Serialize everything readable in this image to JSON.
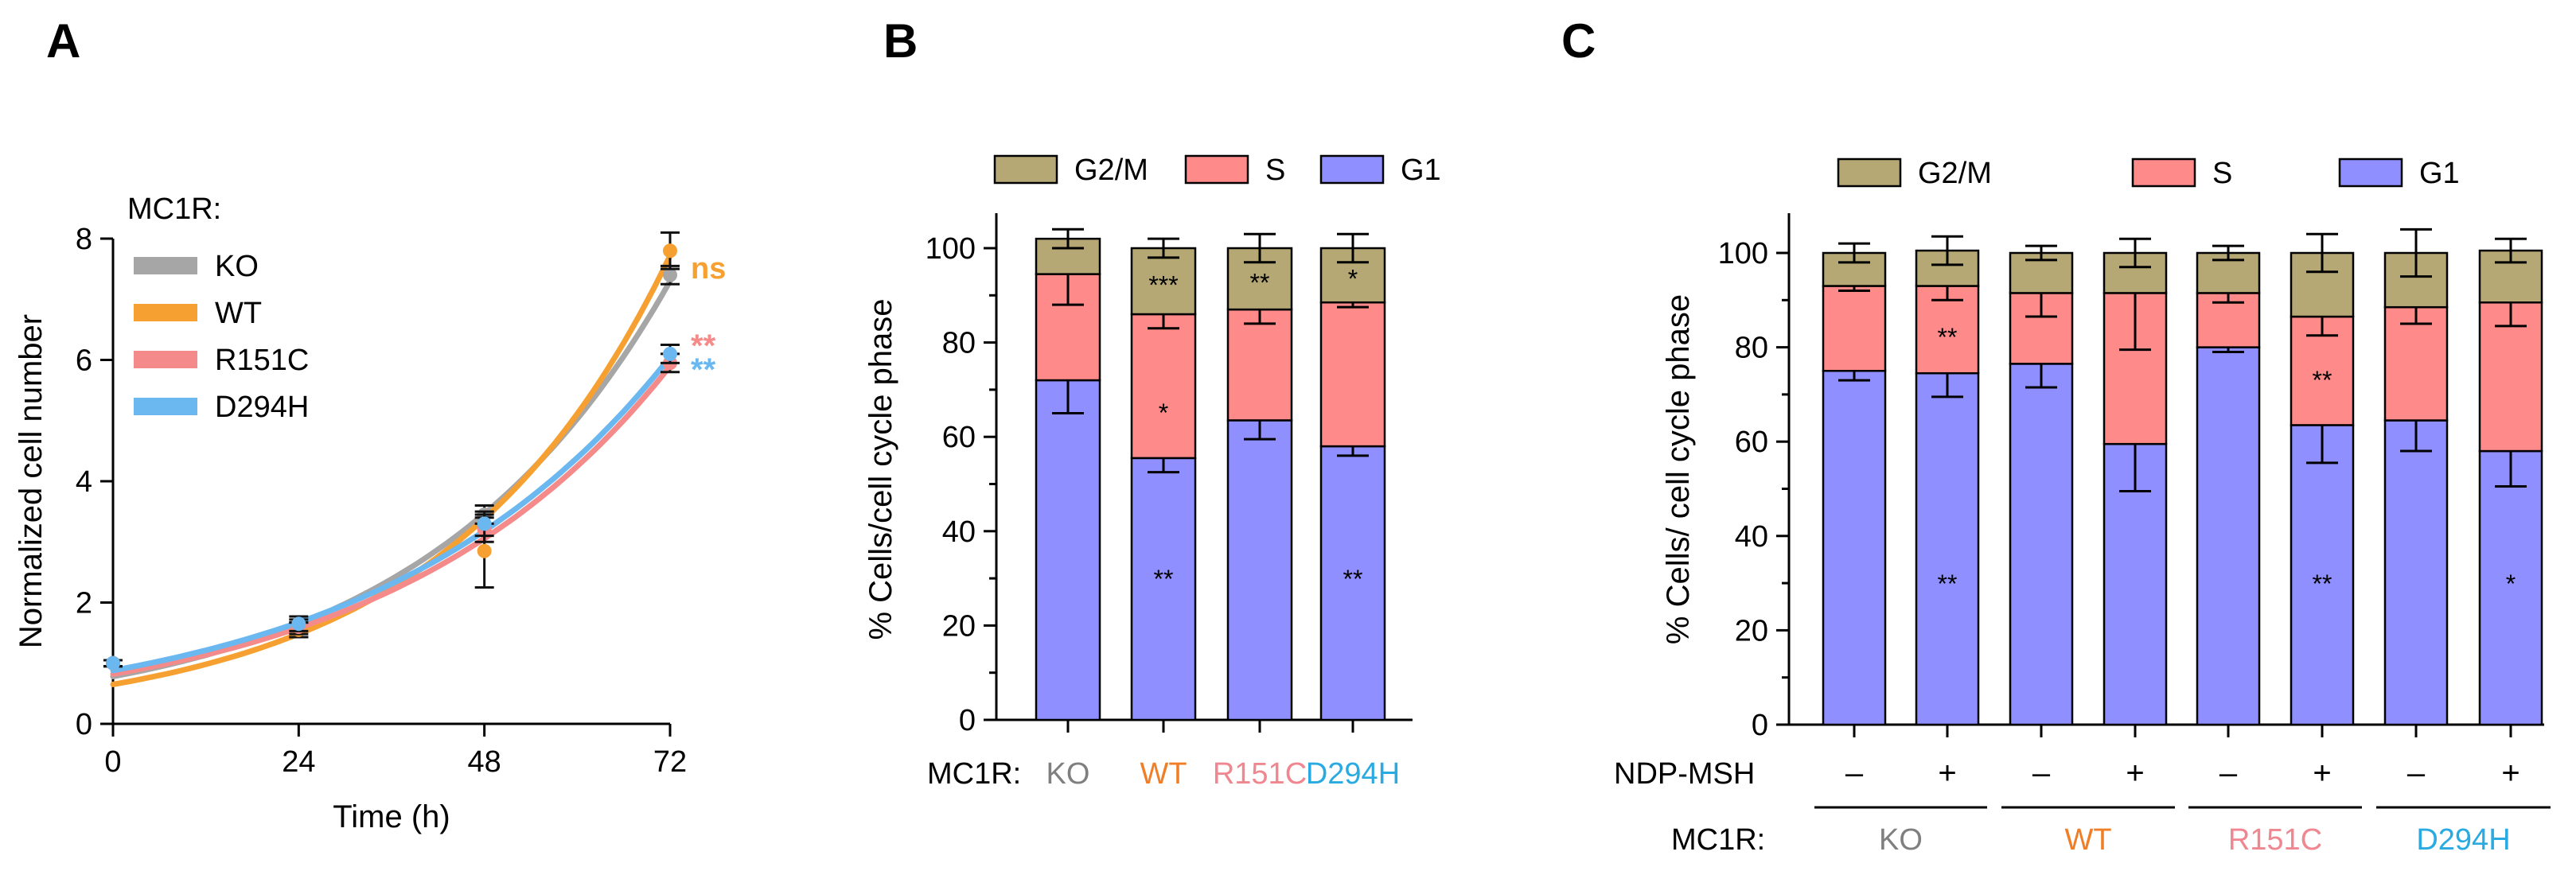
{
  "chart_data": [
    {
      "type": "line",
      "panel_label": "A",
      "xlabel": "Time (h)",
      "ylabel": "Normalized cell number",
      "x": [
        0,
        24,
        48,
        72
      ],
      "xticks": [
        "0",
        "24",
        "48",
        "72"
      ],
      "yticks": [
        "0",
        "2",
        "4",
        "6",
        "8"
      ],
      "xlim": [
        0,
        72
      ],
      "ylim": [
        0,
        8
      ],
      "legend_title": "MC1R:",
      "series": [
        {
          "name": "KO",
          "color": "#a6a6a6",
          "values": [
            1.0,
            1.55,
            3.45,
            7.4
          ],
          "err": [
            0.05,
            0.12,
            0.15,
            0.15
          ],
          "fit": [
            0.78,
            1.62,
            3.33,
            7.3
          ],
          "sig": ""
        },
        {
          "name": "WT",
          "color": "#f7a032",
          "values": [
            1.0,
            1.55,
            2.85,
            7.8
          ],
          "err": [
            0.05,
            0.12,
            0.6,
            0.3
          ],
          "fit": [
            0.65,
            1.45,
            3.25,
            7.72
          ],
          "sig": "ns"
        },
        {
          "name": "R151C",
          "color": "#f58a8a",
          "values": [
            1.0,
            1.6,
            3.2,
            5.95
          ],
          "err": [
            0.05,
            0.12,
            0.2,
            0.15
          ],
          "fit": [
            0.82,
            1.7,
            3.25,
            5.9
          ],
          "sig": "**"
        },
        {
          "name": "D294H",
          "color": "#6bb8f0",
          "values": [
            1.0,
            1.65,
            3.3,
            6.1
          ],
          "err": [
            0.05,
            0.12,
            0.2,
            0.15
          ],
          "fit": [
            0.88,
            1.75,
            3.28,
            6.05
          ],
          "sig": "**"
        }
      ]
    },
    {
      "type": "stacked-bar",
      "panel_label": "B",
      "ylabel": "% Cells/cell cycle phase",
      "yticks": [
        "0",
        "20",
        "40",
        "60",
        "80",
        "100"
      ],
      "ylim": [
        0,
        100
      ],
      "row_label": "MC1R:",
      "categories": [
        "KO",
        "WT",
        "R151C",
        "D294H"
      ],
      "category_colors": [
        "#7f7f7f",
        "#f07e26",
        "#f0868f",
        "#29aae1"
      ],
      "legend": [
        {
          "name": "G2/M",
          "color": "#b5a874"
        },
        {
          "name": "S",
          "color": "#ff8a8a"
        },
        {
          "name": "G1",
          "color": "#8f8fff"
        }
      ],
      "series": [
        {
          "name": "G1",
          "values": [
            72,
            55.5,
            63.5,
            58
          ],
          "err": [
            7,
            3,
            4,
            2
          ],
          "sig": [
            "",
            "**",
            "",
            "**"
          ]
        },
        {
          "name": "S",
          "values": [
            22.5,
            30.5,
            23.5,
            30.5
          ],
          "err": [
            6.5,
            3,
            3,
            1
          ],
          "sig": [
            "",
            "*",
            "",
            ""
          ]
        },
        {
          "name": "G2/M",
          "values": [
            7.5,
            14,
            13,
            11.5
          ],
          "err": [
            2,
            2,
            3,
            3
          ],
          "sig": [
            "",
            "***",
            "**",
            "*"
          ]
        }
      ]
    },
    {
      "type": "stacked-bar",
      "panel_label": "C",
      "ylabel": "% Cells/ cell cycle phase",
      "yticks": [
        "0",
        "20",
        "40",
        "60",
        "80",
        "100"
      ],
      "ylim": [
        0,
        100
      ],
      "treatment_label": "NDP-MSH",
      "treatment": [
        "–",
        "+",
        "–",
        "+",
        "–",
        "+",
        "–",
        "+"
      ],
      "row_label": "MC1R:",
      "groups": [
        "KO",
        "WT",
        "R151C",
        "D294H"
      ],
      "group_colors": [
        "#7f7f7f",
        "#f07e26",
        "#f0868f",
        "#29aae1"
      ],
      "legend": [
        {
          "name": "G2/M",
          "color": "#b5a874"
        },
        {
          "name": "S",
          "color": "#ff8a8a"
        },
        {
          "name": "G1",
          "color": "#8f8fff"
        }
      ],
      "series": [
        {
          "name": "G1",
          "values": [
            75,
            74.5,
            76.5,
            59.5,
            80,
            63.5,
            64.5,
            58
          ],
          "err": [
            2,
            5,
            5,
            10,
            1,
            8,
            6.5,
            7.5
          ],
          "sig": [
            "",
            "**",
            "",
            "",
            "",
            "**",
            "",
            "*"
          ]
        },
        {
          "name": "S",
          "values": [
            18,
            18.5,
            15,
            32,
            11.5,
            23,
            24,
            31.5
          ],
          "err": [
            1,
            3,
            5,
            12,
            2,
            4,
            3.5,
            5
          ],
          "sig": [
            "",
            "**",
            "",
            "",
            "",
            "**",
            "",
            ""
          ]
        },
        {
          "name": "G2/M",
          "values": [
            7,
            7.5,
            8.5,
            8.5,
            8.5,
            13.5,
            11.5,
            11
          ],
          "err": [
            2,
            3,
            1.5,
            3,
            1.5,
            4,
            5,
            2.5
          ],
          "sig": [
            "",
            "",
            "",
            "",
            "",
            "",
            "",
            ""
          ]
        }
      ]
    }
  ]
}
